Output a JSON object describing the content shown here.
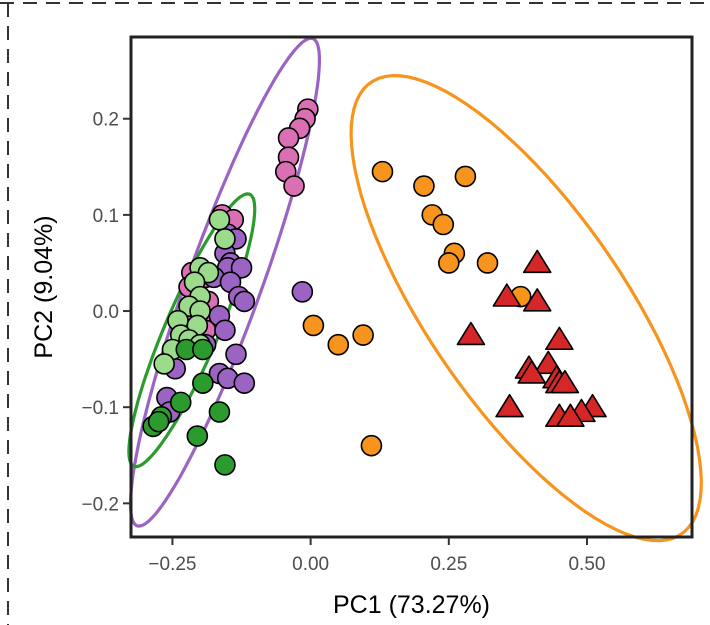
{
  "chart_data": {
    "type": "scatter",
    "xlabel": "PC1 (73.27%)",
    "ylabel": "PC2 (9.04%)",
    "xlim": [
      -0.325,
      0.69
    ],
    "ylim": [
      -0.235,
      0.285
    ],
    "x_ticks": [
      {
        "value": -0.25,
        "label": "−0.25"
      },
      {
        "value": 0.0,
        "label": "0.00"
      },
      {
        "value": 0.25,
        "label": "0.25"
      },
      {
        "value": 0.5,
        "label": "0.50"
      }
    ],
    "y_ticks": [
      {
        "value": 0.2,
        "label": "0.2"
      },
      {
        "value": 0.1,
        "label": "0.1"
      },
      {
        "value": 0.0,
        "label": "0.0"
      },
      {
        "value": -0.1,
        "label": "−0.1"
      },
      {
        "value": -0.2,
        "label": "−0.2"
      }
    ],
    "grid": false,
    "legend": "none",
    "series": [
      {
        "name": "pink",
        "color": "#DA70B3",
        "marker": "circle",
        "points": [
          [
            -0.005,
            0.21
          ],
          [
            -0.01,
            0.2
          ],
          [
            -0.02,
            0.19
          ],
          [
            -0.04,
            0.18
          ],
          [
            -0.04,
            0.16
          ],
          [
            -0.045,
            0.145
          ],
          [
            -0.03,
            0.13
          ],
          [
            -0.16,
            0.1
          ],
          [
            -0.14,
            0.095
          ],
          [
            -0.215,
            0.04
          ],
          [
            -0.19,
            0.035
          ],
          [
            -0.22,
            0.025
          ],
          [
            -0.185,
            0.01
          ],
          [
            -0.21,
            -0.005
          ],
          [
            -0.18,
            -0.015
          ],
          [
            -0.19,
            -0.02
          ]
        ]
      },
      {
        "name": "purple",
        "color": "#9B64C3",
        "marker": "circle",
        "points": [
          [
            -0.15,
            0.08
          ],
          [
            -0.135,
            0.075
          ],
          [
            -0.155,
            0.06
          ],
          [
            -0.145,
            0.05
          ],
          [
            -0.15,
            0.045
          ],
          [
            -0.125,
            0.045
          ],
          [
            -0.175,
            0.035
          ],
          [
            -0.145,
            0.03
          ],
          [
            -0.13,
            0.015
          ],
          [
            -0.015,
            0.02
          ],
          [
            -0.12,
            0.01
          ],
          [
            -0.165,
            -0.005
          ],
          [
            -0.155,
            -0.02
          ],
          [
            -0.19,
            -0.035
          ],
          [
            -0.135,
            -0.045
          ],
          [
            -0.245,
            -0.06
          ],
          [
            -0.165,
            -0.065
          ],
          [
            -0.15,
            -0.07
          ],
          [
            -0.12,
            -0.075
          ],
          [
            -0.26,
            -0.09
          ],
          [
            -0.255,
            -0.105
          ]
        ]
      },
      {
        "name": "light-green",
        "color": "#9CDB8C",
        "marker": "circle",
        "points": [
          [
            -0.165,
            0.095
          ],
          [
            -0.155,
            0.075
          ],
          [
            -0.2,
            0.045
          ],
          [
            -0.185,
            0.04
          ],
          [
            -0.21,
            0.03
          ],
          [
            -0.2,
            0.015
          ],
          [
            -0.22,
            0.005
          ],
          [
            -0.2,
            0.0
          ],
          [
            -0.24,
            -0.01
          ],
          [
            -0.205,
            -0.015
          ],
          [
            -0.235,
            -0.025
          ],
          [
            -0.22,
            -0.03
          ],
          [
            -0.2,
            -0.035
          ],
          [
            -0.25,
            -0.04
          ],
          [
            -0.265,
            -0.055
          ]
        ]
      },
      {
        "name": "dark-green",
        "color": "#2B9B2E",
        "marker": "circle",
        "points": [
          [
            -0.225,
            -0.04
          ],
          [
            -0.195,
            -0.04
          ],
          [
            -0.195,
            -0.075
          ],
          [
            -0.235,
            -0.095
          ],
          [
            -0.165,
            -0.105
          ],
          [
            -0.27,
            -0.11
          ],
          [
            -0.285,
            -0.12
          ],
          [
            -0.275,
            -0.115
          ],
          [
            -0.205,
            -0.13
          ],
          [
            -0.155,
            -0.16
          ]
        ]
      },
      {
        "name": "orange",
        "color": "#F7941D",
        "marker": "circle",
        "points": [
          [
            0.13,
            0.145
          ],
          [
            0.28,
            0.14
          ],
          [
            0.205,
            0.13
          ],
          [
            0.22,
            0.1
          ],
          [
            0.24,
            0.09
          ],
          [
            0.26,
            0.06
          ],
          [
            0.25,
            0.05
          ],
          [
            0.32,
            0.05
          ],
          [
            0.38,
            0.015
          ],
          [
            0.005,
            -0.015
          ],
          [
            0.095,
            -0.025
          ],
          [
            0.05,
            -0.035
          ],
          [
            0.11,
            -0.14
          ]
        ]
      },
      {
        "name": "red",
        "color": "#D62728",
        "marker": "triangle",
        "points": [
          [
            0.41,
            0.05
          ],
          [
            0.355,
            0.015
          ],
          [
            0.41,
            0.01
          ],
          [
            0.29,
            -0.025
          ],
          [
            0.45,
            -0.03
          ],
          [
            0.43,
            -0.055
          ],
          [
            0.395,
            -0.06
          ],
          [
            0.4,
            -0.065
          ],
          [
            0.445,
            -0.07
          ],
          [
            0.45,
            -0.075
          ],
          [
            0.46,
            -0.075
          ],
          [
            0.36,
            -0.1
          ],
          [
            0.51,
            -0.1
          ],
          [
            0.49,
            -0.105
          ],
          [
            0.45,
            -0.11
          ],
          [
            0.47,
            -0.11
          ]
        ]
      }
    ],
    "ellipses": [
      {
        "name": "purple-ellipse",
        "color": "#9B64C3",
        "cx": -0.155,
        "cy": 0.03,
        "rx": 0.3,
        "ry": 0.06,
        "angle_deg": 57
      },
      {
        "name": "green-ellipse",
        "color": "#2B9B2E",
        "cx": -0.215,
        "cy": -0.02,
        "rx": 0.177,
        "ry": 0.042,
        "angle_deg": 52
      },
      {
        "name": "orange-ellipse",
        "color": "#F7941D",
        "cx": 0.39,
        "cy": 0.003,
        "rx": 0.375,
        "ry": 0.135,
        "angle_deg": -35
      }
    ]
  }
}
